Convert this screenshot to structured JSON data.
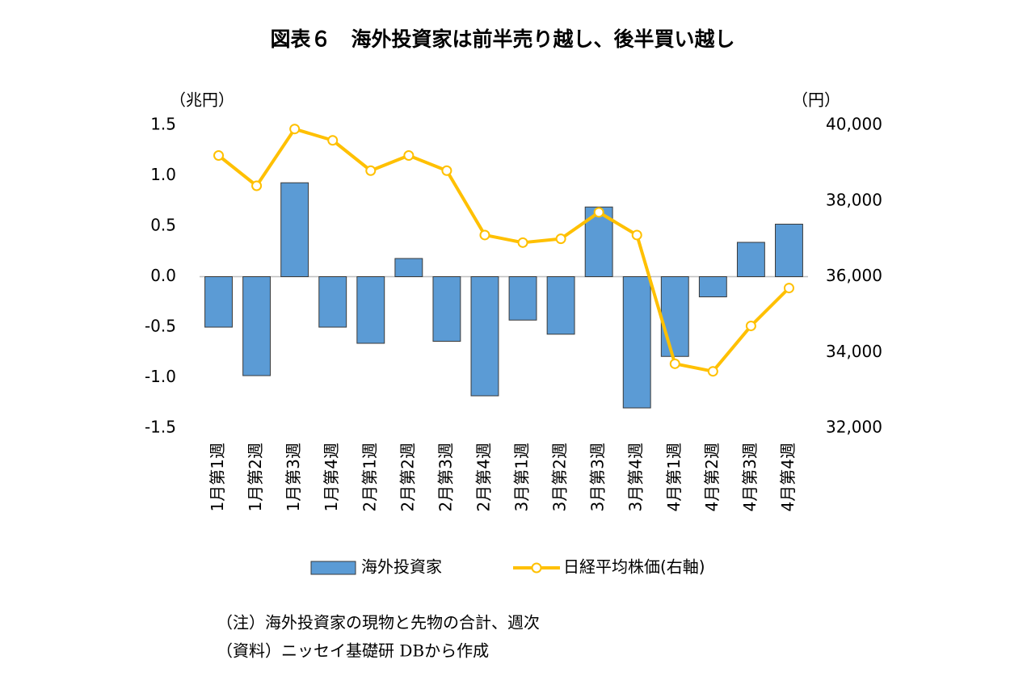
{
  "chart_data": {
    "type": "bar",
    "title": "図表６　海外投資家は前半売り越し、後半買い越し",
    "y_label": "（兆円）",
    "y2_label": "（円）",
    "categories": [
      "1月第1週",
      "1月第2週",
      "1月第3週",
      "1月第4週",
      "2月第1週",
      "2月第2週",
      "2月第3週",
      "2月第4週",
      "3月第1週",
      "3月第2週",
      "3月第3週",
      "3月第4週",
      "4月第1週",
      "4月第2週",
      "4月第3週",
      "4月第4週"
    ],
    "series": [
      {
        "name": "海外投資家",
        "type": "bar",
        "color": "#5b9bd5",
        "values": [
          -0.5,
          -0.98,
          0.93,
          -0.5,
          -0.66,
          0.18,
          -0.64,
          -1.18,
          -0.43,
          -0.57,
          0.69,
          -1.3,
          -0.79,
          -0.2,
          0.34,
          0.52
        ]
      },
      {
        "name": "日経平均株価(右軸)",
        "type": "line",
        "axis": "y2",
        "color": "#ffc000",
        "values": [
          39200,
          38400,
          39900,
          39600,
          38800,
          39200,
          38800,
          37100,
          36900,
          37000,
          37700,
          37100,
          33700,
          33500,
          34700,
          35700
        ]
      }
    ],
    "ylim": [
      -1.5,
      1.5
    ],
    "yticks": [
      {
        "value": -1.5,
        "label": "-1.5"
      },
      {
        "value": -1,
        "label": "-1.0"
      },
      {
        "value": -0.5,
        "label": "-0.5"
      },
      {
        "value": 0,
        "label": "0.0"
      },
      {
        "value": 0.5,
        "label": "0.5"
      },
      {
        "value": 1,
        "label": "1.0"
      },
      {
        "value": 1.5,
        "label": "1.5"
      }
    ],
    "y2lim": [
      32000,
      40000
    ],
    "y2ticks": [
      {
        "value": 32000,
        "label": "32,000"
      },
      {
        "value": 34000,
        "label": "34,000"
      },
      {
        "value": 36000,
        "label": "36,000"
      },
      {
        "value": 38000,
        "label": "38,000"
      },
      {
        "value": 40000,
        "label": "40,000"
      }
    ]
  },
  "notes": [
    "（注）海外投資家の現物と先物の合計、週次",
    "（資料）ニッセイ基礎研 DBから作成"
  ]
}
